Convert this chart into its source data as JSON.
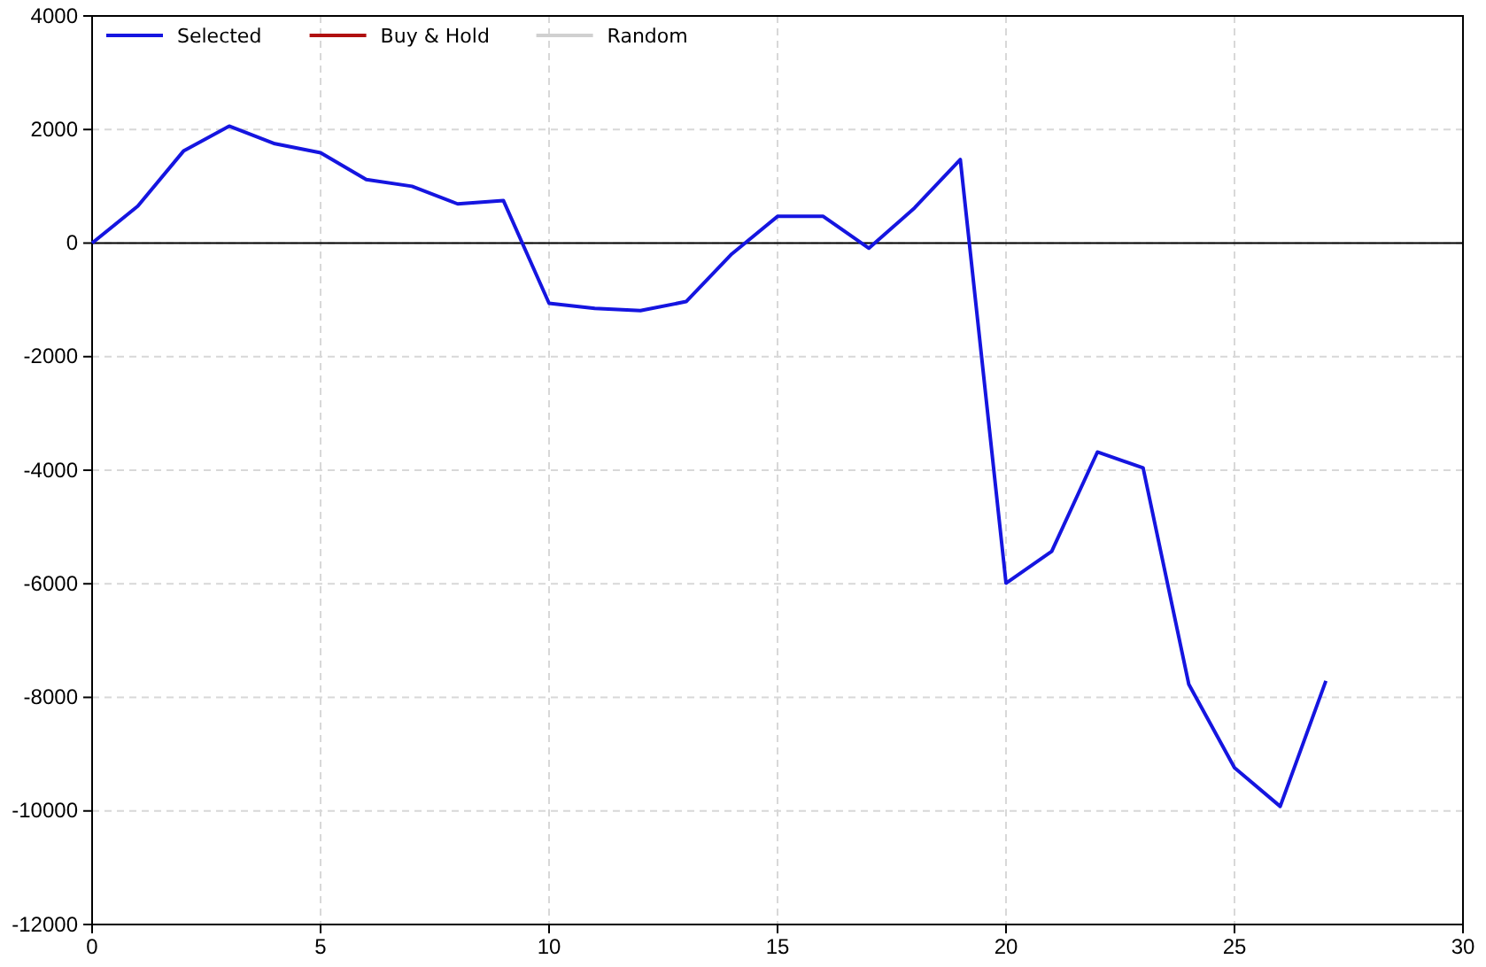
{
  "chart_data": {
    "type": "line",
    "x": [
      0,
      1,
      2,
      3,
      4,
      5,
      6,
      7,
      8,
      9,
      10,
      11,
      12,
      13,
      14,
      15,
      16,
      17,
      18,
      19,
      20,
      21,
      22,
      23,
      24,
      25,
      26,
      27
    ],
    "series": [
      {
        "name": "Selected",
        "color": "#1515e0",
        "values": [
          0,
          650,
          1620,
          2060,
          1750,
          1590,
          1120,
          1000,
          690,
          750,
          -1060,
          -1150,
          -1190,
          -1030,
          -190,
          470,
          470,
          -90,
          620,
          1470,
          -5990,
          -5430,
          -3680,
          -3960,
          -7770,
          -9240,
          -9920,
          -7710
        ]
      },
      {
        "name": "Buy & Hold",
        "color": "#b01010",
        "values": [
          null,
          null,
          null,
          null,
          null,
          null,
          null,
          null,
          null,
          null,
          null,
          null,
          null,
          null,
          null,
          null,
          null,
          null,
          null,
          null,
          null,
          null,
          null,
          null,
          null,
          null,
          null,
          null
        ]
      },
      {
        "name": "Random",
        "color": "#d0d0d0",
        "values": [
          null,
          null,
          null,
          null,
          null,
          null,
          null,
          null,
          null,
          null,
          null,
          null,
          null,
          null,
          null,
          null,
          null,
          null,
          null,
          null,
          null,
          null,
          null,
          null,
          null,
          null,
          null,
          null
        ]
      }
    ],
    "xlim": [
      0,
      30
    ],
    "xticks": [
      0,
      5,
      10,
      15,
      20,
      25,
      30
    ],
    "ylim": [
      -12000,
      4000
    ],
    "yticks": [
      -12000,
      -10000,
      -8000,
      -6000,
      -4000,
      -2000,
      0,
      2000,
      4000
    ],
    "ref_lines": [
      {
        "axis": "y",
        "value": 0,
        "color": "#000000"
      }
    ],
    "grid": true,
    "legend": "top left",
    "line_style": "solid",
    "marker": "none"
  }
}
